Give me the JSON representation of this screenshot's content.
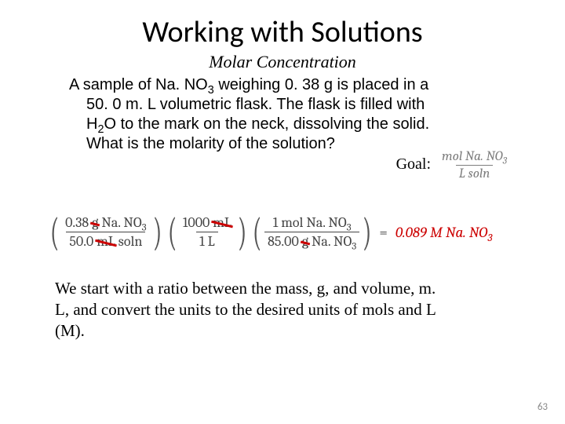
{
  "title": "Working with Solutions",
  "subtitle": "Molar Concentration",
  "problem": {
    "line1_pre": "A sample of Na. NO",
    "line1_sub": "3",
    "line1_post": " weighing 0. 38 g is placed in a",
    "line2": "50. 0 m. L volumetric flask.  The flask is filled with",
    "line3_pre": "H",
    "line3_sub": "2",
    "line3_post": "O to the mark on the neck, dissolving the solid.",
    "line4": "What is the molarity of the solution?"
  },
  "goal": {
    "label": "Goal:",
    "num_pre": "mol Na. NO",
    "num_sub": "3",
    "den": "L soln"
  },
  "equation": {
    "term1": {
      "num_val": "0.38",
      "num_unit": "g",
      "num_tail_pre": " Na. NO",
      "num_tail_sub": "3",
      "den_val": "50.0",
      "den_unit": "mL",
      "den_tail": " soln"
    },
    "term2": {
      "num_val": "1000",
      "num_unit": "mL",
      "den_val": "1 L"
    },
    "term3": {
      "num_val": "1 mol Na. NO",
      "num_sub": "3",
      "den_val": "85.00",
      "den_unit": "g",
      "den_tail_pre": " Na. NO",
      "den_tail_sub": "3"
    },
    "equals": "=",
    "result_pre": " 0.089 M Na. NO",
    "result_sub": "3",
    "strike_color": "#cc0000",
    "result_color": "#cc0000"
  },
  "explain": "We start with a ratio between the mass, g,  and volume, m. L, and convert the units to the desired units of mols and L (M).",
  "page_number": "63",
  "colors": {
    "bg": "#ffffff",
    "text": "#000000",
    "muted": "#7e7e7e",
    "accent": "#cc0000"
  }
}
